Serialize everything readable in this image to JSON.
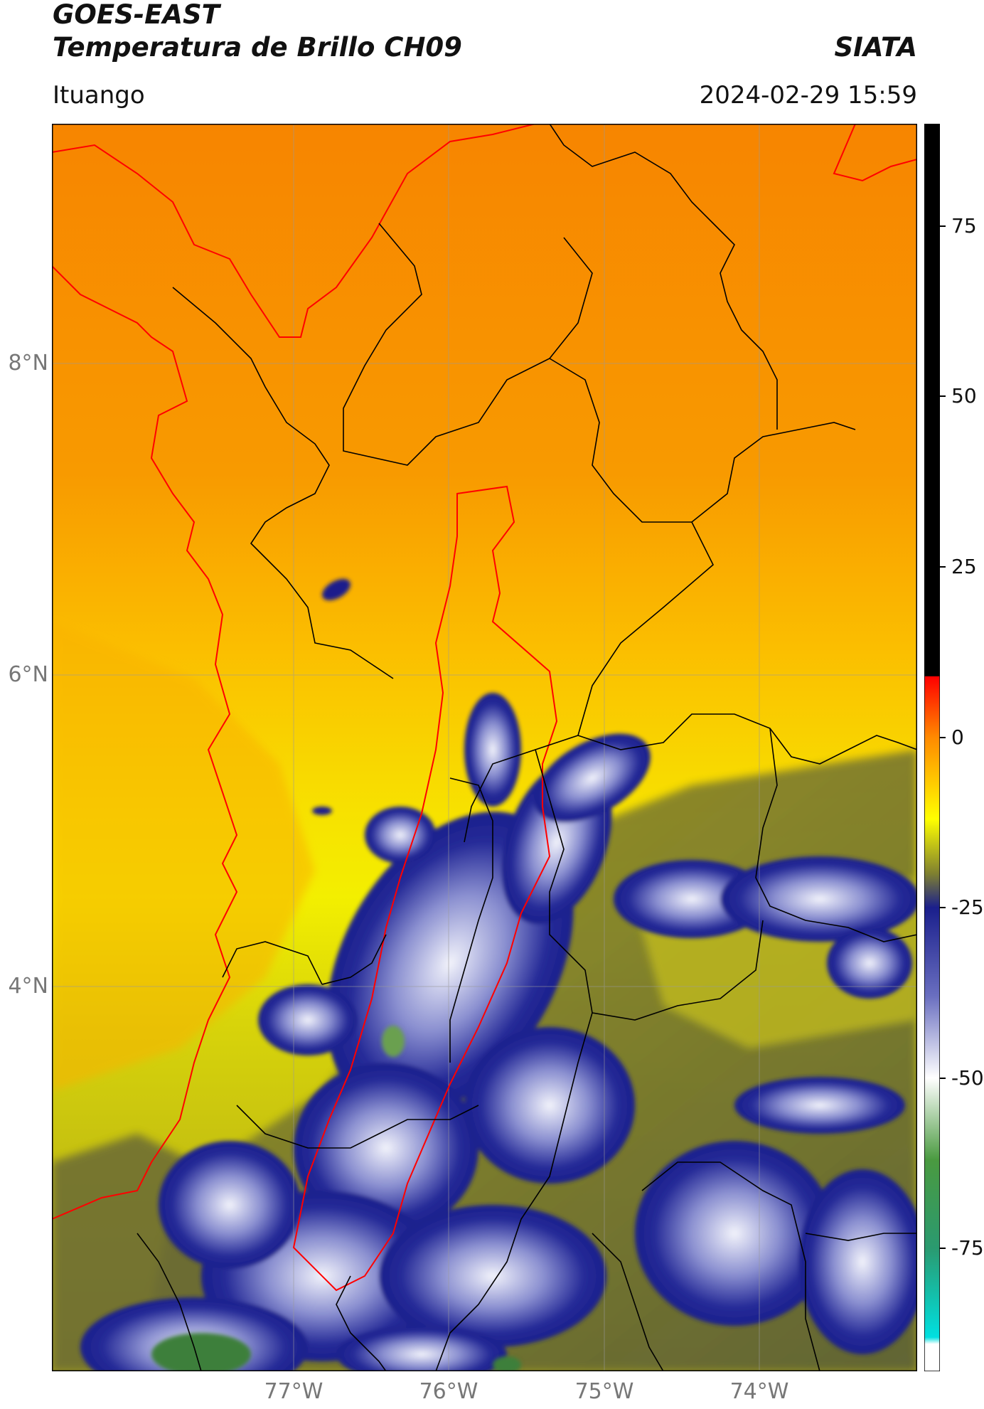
{
  "header": {
    "satellite": "GOES-EAST",
    "product": "Temperatura de Brillo CH09",
    "organization": "SIATA",
    "location": "Ituango",
    "datetime": "2024-02-29 15:59"
  },
  "map": {
    "lat_labels": [
      "8°N",
      "6°N",
      "4°N"
    ],
    "lon_labels": [
      "77°W",
      "76°W",
      "75°W",
      "74°W"
    ],
    "region_colors": {
      "warm_north": "#f78a00",
      "mid": "#fbb800",
      "yellow": "#f3ef00",
      "olive": "#a7a51a",
      "dark_olive": "#555a3a",
      "cloud_blue": "#1d2190",
      "cloud_white": "#eef0f7",
      "green_cold": "#3d7f3a",
      "outline_red": "#ff0000",
      "outline_black": "#000000"
    }
  },
  "colorbar": {
    "ticks": [
      "75",
      "50",
      "25",
      "0",
      "-25",
      "-50",
      "-75"
    ],
    "tick_values": [
      75,
      50,
      25,
      0,
      -25,
      -50,
      -75
    ],
    "range": [
      -93,
      90
    ],
    "stops": [
      {
        "value": 90,
        "color": "#000000"
      },
      {
        "value": 9,
        "color": "#000000"
      },
      {
        "value": 8.9,
        "color": "#ff0000"
      },
      {
        "value": 0,
        "color": "#ff8a00"
      },
      {
        "value": -12,
        "color": "#ffff00"
      },
      {
        "value": -20,
        "color": "#7f8030"
      },
      {
        "value": -25,
        "color": "#1a1f8c"
      },
      {
        "value": -38,
        "color": "#6a6fc0"
      },
      {
        "value": -50,
        "color": "#ffffff"
      },
      {
        "value": -62,
        "color": "#4a9a40"
      },
      {
        "value": -75,
        "color": "#2a9a70"
      },
      {
        "value": -88,
        "color": "#00e0e0"
      },
      {
        "value": -89,
        "color": "#ffffff"
      },
      {
        "value": -93,
        "color": "#ffffff"
      }
    ]
  }
}
